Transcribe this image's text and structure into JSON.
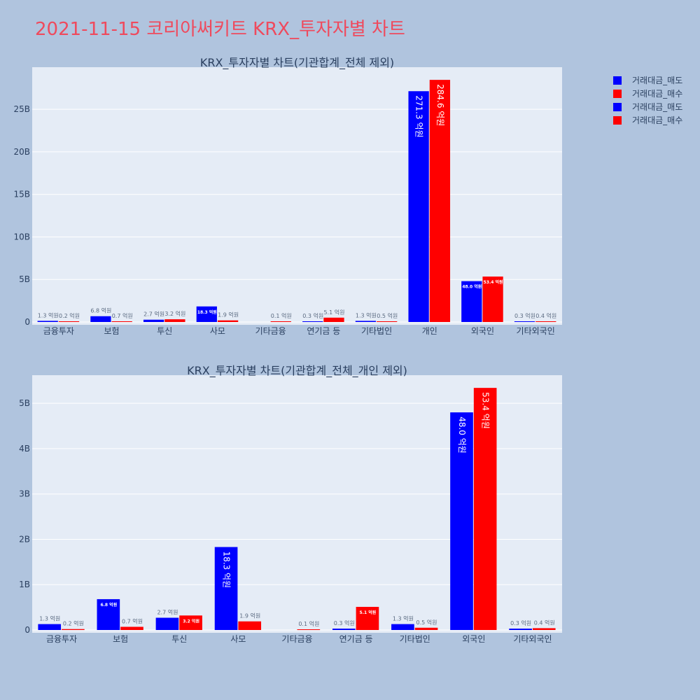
{
  "title": "2021-11-15 코리아써키트 KRX_투자자별 차트",
  "colors": {
    "title": "#ef4a5d",
    "sell": "#0000ff",
    "buy": "#ff0000",
    "plot_bg": "#e5ecf6",
    "page_bg": "#b0c4de"
  },
  "legend": {
    "position": "top-right",
    "items": [
      {
        "name": "거래대금_매도",
        "color": "#0000ff"
      },
      {
        "name": "거래대금_매수",
        "color": "#ff0000"
      },
      {
        "name": "거래대금_매도",
        "color": "#0000ff"
      },
      {
        "name": "거래대금_매수",
        "color": "#ff0000"
      }
    ]
  },
  "chart_data": [
    {
      "type": "bar",
      "title": "KRX_투자자별 차트(기관합계_전체 제외)",
      "categories": [
        "금융투자",
        "보험",
        "투신",
        "사모",
        "기타금융",
        "연기금 등",
        "기타법인",
        "개인",
        "외국인",
        "기타외국인"
      ],
      "series": [
        {
          "name": "거래대금_매도",
          "color": "#0000ff",
          "values": [
            0.13,
            0.68,
            0.27,
            1.83,
            0,
            0.03,
            0.13,
            27.13,
            4.8,
            0.03
          ],
          "labels": [
            "1.3 억원",
            "6.8 억원",
            "2.7 억원",
            "18.3 억원",
            "",
            "0.3 억원",
            "1.3 억원",
            "271.3 억원",
            "48.0 억원",
            "0.3 억원"
          ]
        },
        {
          "name": "거래대금_매수",
          "color": "#ff0000",
          "values": [
            0.02,
            0.07,
            0.32,
            0.19,
            0.01,
            0.51,
            0.05,
            28.46,
            5.34,
            0.04
          ],
          "labels": [
            "0.2 억원",
            "0.7 억원",
            "3.2 억원",
            "1.9 억원",
            "0.1 억원",
            "5.1 억원",
            "0.5 억원",
            "284.6 억원",
            "53.4 억원",
            "0.4 억원"
          ]
        }
      ],
      "yticks": [
        0,
        5,
        10,
        15,
        20,
        25
      ],
      "ytick_labels": [
        "0",
        "5B",
        "10B",
        "15B",
        "20B",
        "25B"
      ],
      "ylim": [
        0,
        29.95
      ],
      "grid": true
    },
    {
      "type": "bar",
      "title": "KRX_투자자별 차트(기관합계_전체_개인 제외)",
      "categories": [
        "금융투자",
        "보험",
        "투신",
        "사모",
        "기타금융",
        "연기금 등",
        "기타법인",
        "외국인",
        "기타외국인"
      ],
      "series": [
        {
          "name": "거래대금_매도",
          "color": "#0000ff",
          "values": [
            0.13,
            0.68,
            0.27,
            1.83,
            0,
            0.03,
            0.13,
            4.8,
            0.03
          ],
          "labels": [
            "1.3 억원",
            "6.8 억원",
            "2.7 억원",
            "18.3 억원",
            "",
            "0.3 억원",
            "1.3 억원",
            "48.0 억원",
            "0.3 억원"
          ]
        },
        {
          "name": "거래대금_매수",
          "color": "#ff0000",
          "values": [
            0.02,
            0.07,
            0.32,
            0.19,
            0.01,
            0.51,
            0.05,
            5.34,
            0.04
          ],
          "labels": [
            "0.2 억원",
            "0.7 억원",
            "3.2 억원",
            "1.9 억원",
            "0.1 억원",
            "5.1 억원",
            "0.5 억원",
            "53.4 억원",
            "0.4 억원"
          ]
        }
      ],
      "yticks": [
        0,
        1,
        2,
        3,
        4,
        5
      ],
      "ytick_labels": [
        "0",
        "1B",
        "2B",
        "3B",
        "4B",
        "5B"
      ],
      "ylim": [
        0,
        5.62
      ],
      "grid": true
    }
  ]
}
